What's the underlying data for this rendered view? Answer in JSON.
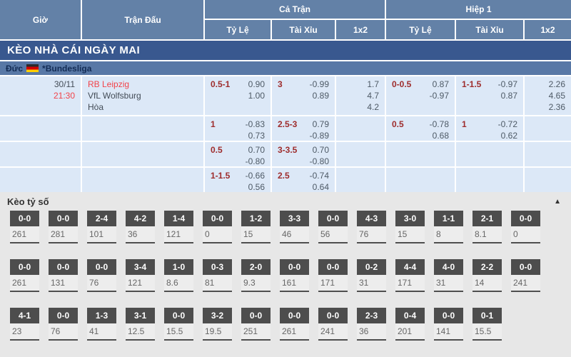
{
  "colors": {
    "header_blue": "#6381a7",
    "banner_navy": "#39588f",
    "league_blue": "#5878a6",
    "row_blue": "#dce8f7",
    "label_red": "#9e2c2c",
    "link_red": "#f2434a",
    "value_gray": "#4e5a66",
    "cs_box": "#4d4d4d"
  },
  "header": {
    "col_time": "Giờ",
    "col_match": "Trận Đấu",
    "group_full": "Cả Trận",
    "group_half": "Hiệp 1",
    "sub_odds": "Tỷ Lệ",
    "sub_ou": "Tài Xỉu",
    "sub_1x2": "1x2"
  },
  "banner": {
    "title": "KÈO NHÀ CÁI NGÀY MAI"
  },
  "league": {
    "country": "Đức",
    "flag_icon": "germany-flag",
    "name": "*Bundesliga"
  },
  "match": {
    "date": "30/11",
    "time": "21:30",
    "home": "RB Leipzig",
    "away": "VfL Wolfsburg",
    "draw": "Hòa"
  },
  "odds_rows": [
    {
      "ft_hdp_line": "0.5-1",
      "ft_hdp_v1": "0.90",
      "ft_hdp_v2": "1.00",
      "ft_ou_line": "3",
      "ft_ou_v1": "-0.99",
      "ft_ou_v2": "0.89",
      "ft_1x2_1": "1.7",
      "ft_1x2_x": "4.7",
      "ft_1x2_2": "4.2",
      "h1_hdp_line": "0-0.5",
      "h1_hdp_v1": "0.87",
      "h1_hdp_v2": "-0.97",
      "h1_ou_line": "1-1.5",
      "h1_ou_v1": "-0.97",
      "h1_ou_v2": "0.87",
      "h1_1x2_1": "2.26",
      "h1_1x2_x": "4.65",
      "h1_1x2_2": "2.36"
    },
    {
      "ft_hdp_line": "1",
      "ft_hdp_v1": "-0.83",
      "ft_hdp_v2": "0.73",
      "ft_ou_line": "2.5-3",
      "ft_ou_v1": "0.79",
      "ft_ou_v2": "-0.89",
      "h1_hdp_line": "0.5",
      "h1_hdp_v1": "-0.78",
      "h1_hdp_v2": "0.68",
      "h1_ou_line": "1",
      "h1_ou_v1": "-0.72",
      "h1_ou_v2": "0.62"
    },
    {
      "ft_hdp_line": "0.5",
      "ft_hdp_v1": "0.70",
      "ft_hdp_v2": "-0.80",
      "ft_ou_line": "3-3.5",
      "ft_ou_v1": "0.70",
      "ft_ou_v2": "-0.80"
    },
    {
      "ft_hdp_line": "1-1.5",
      "ft_hdp_v1": "-0.66",
      "ft_hdp_v2": "0.56",
      "ft_ou_line": "2.5",
      "ft_ou_v1": "-0.74",
      "ft_ou_v2": "0.64"
    }
  ],
  "correct_score": {
    "title": "Kèo tỷ số",
    "collapse_icon": "▲",
    "rows": [
      [
        {
          "score": "0-0",
          "odds": "261"
        },
        {
          "score": "0-0",
          "odds": "281"
        },
        {
          "score": "2-4",
          "odds": "101"
        },
        {
          "score": "4-2",
          "odds": "36"
        },
        {
          "score": "1-4",
          "odds": "121"
        },
        {
          "score": "0-0",
          "odds": "0"
        },
        {
          "score": "1-2",
          "odds": "15"
        },
        {
          "score": "3-3",
          "odds": "46"
        },
        {
          "score": "0-0",
          "odds": "56"
        },
        {
          "score": "4-3",
          "odds": "76"
        },
        {
          "score": "3-0",
          "odds": "15"
        },
        {
          "score": "1-1",
          "odds": "8"
        },
        {
          "score": "2-1",
          "odds": "8.1"
        },
        {
          "score": "0-0",
          "odds": "0"
        }
      ],
      [
        {
          "score": "0-0",
          "odds": "261"
        },
        {
          "score": "0-0",
          "odds": "131"
        },
        {
          "score": "0-0",
          "odds": "76"
        },
        {
          "score": "3-4",
          "odds": "121"
        },
        {
          "score": "1-0",
          "odds": "8.6"
        },
        {
          "score": "0-3",
          "odds": "81"
        },
        {
          "score": "2-0",
          "odds": "9.3"
        },
        {
          "score": "0-0",
          "odds": "161"
        },
        {
          "score": "0-0",
          "odds": "171"
        },
        {
          "score": "0-2",
          "odds": "31"
        },
        {
          "score": "4-4",
          "odds": "171"
        },
        {
          "score": "4-0",
          "odds": "31"
        },
        {
          "score": "2-2",
          "odds": "14"
        },
        {
          "score": "0-0",
          "odds": "241"
        }
      ],
      [
        {
          "score": "4-1",
          "odds": "23"
        },
        {
          "score": "0-0",
          "odds": "76"
        },
        {
          "score": "1-3",
          "odds": "41"
        },
        {
          "score": "3-1",
          "odds": "12.5"
        },
        {
          "score": "0-0",
          "odds": "15.5"
        },
        {
          "score": "3-2",
          "odds": "19.5"
        },
        {
          "score": "0-0",
          "odds": "251"
        },
        {
          "score": "0-0",
          "odds": "261"
        },
        {
          "score": "0-0",
          "odds": "241"
        },
        {
          "score": "2-3",
          "odds": "36"
        },
        {
          "score": "0-4",
          "odds": "201"
        },
        {
          "score": "0-0",
          "odds": "141"
        },
        {
          "score": "0-1",
          "odds": "15.5"
        }
      ]
    ]
  }
}
